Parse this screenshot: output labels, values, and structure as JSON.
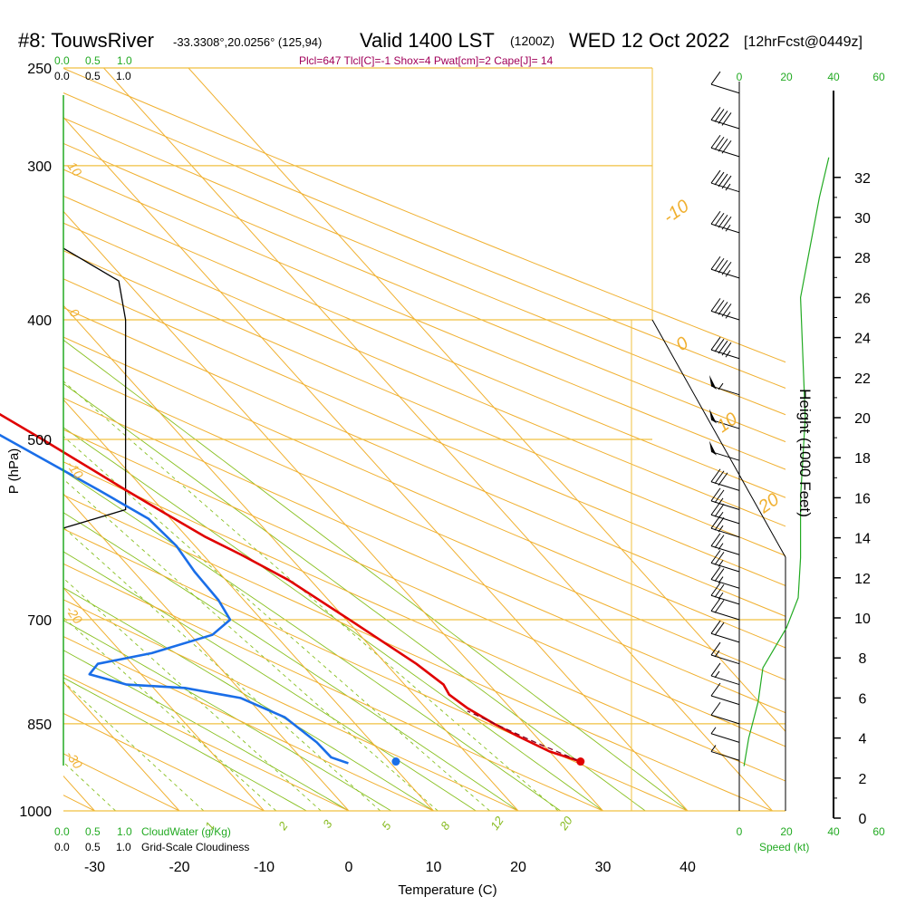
{
  "header": {
    "station": "#8: TouwsRiver",
    "coords": "-33.3308°,20.0256° (125,94)",
    "valid": "Valid 1400 LST",
    "zulu": "(1200Z)",
    "date": "WED 12 Oct 2022",
    "forecast": "[12hrFcst@0449z]"
  },
  "params_line": "Plcl=647 Tlcl[C]=-1 Shox=4 Pwat[cm]=2 Cape[J]= 14",
  "colors": {
    "temperature": "#e00000",
    "dewpoint": "#1a6ee8",
    "isobar": "#f0c040",
    "dry_adiabat": "#f0b030",
    "moist_adiabat": "#88c020",
    "mixing_ratio": "#88c020",
    "cloud_water": "#22aa22",
    "cloudiness": "#000000",
    "wind_speed": "#22aa22"
  },
  "top_scales": {
    "cloud_water_ticks": [
      "0.0",
      "0.5",
      "1.0"
    ],
    "cloudiness_ticks": [
      "0.0",
      "0.5",
      "1.0"
    ],
    "speed_ticks": [
      "0",
      "20",
      "40",
      "60"
    ]
  },
  "bottom_scales": {
    "cloud_water_ticks": [
      "0.0",
      "0.5",
      "1.0"
    ],
    "cloud_water_label": "CloudWater (g/Kg)",
    "cloudiness_ticks": [
      "0.0",
      "0.5",
      "1.0"
    ],
    "cloudiness_label": "Grid-Scale Cloudiness",
    "speed_ticks": [
      "0",
      "20",
      "40",
      "60"
    ],
    "speed_label": "Speed (kt)"
  },
  "axes": {
    "ylabel": "P (hPa)",
    "xlabel": "Temperature (C)",
    "right_label": "Height (1000 Feet)"
  },
  "chart_data": {
    "type": "line",
    "title": "#8: TouwsRiver -33.3308°,20.0256° (125,94) Valid 1400 LST (1200Z) WED 12 Oct 2022 [12hrFcst@0449z]",
    "xlabel": "Temperature (C)",
    "ylabel": "P (hPa)",
    "y_scale": "log (skew-T)",
    "xlim": [
      -34,
      45
    ],
    "ylim": [
      1000,
      250
    ],
    "x_ticks": [
      "-30",
      "-20",
      "-10",
      "0",
      "10",
      "20",
      "30",
      "40"
    ],
    "x_tick_values": [
      -30,
      -20,
      -10,
      0,
      10,
      20,
      30,
      40
    ],
    "p_ticks": [
      "250",
      "300",
      "400",
      "500",
      "700",
      "850",
      "1000"
    ],
    "p_tick_values": [
      250,
      300,
      400,
      500,
      700,
      850,
      1000
    ],
    "height_ticks": [
      "0",
      "2",
      "4",
      "6",
      "8",
      "10",
      "12",
      "14",
      "16",
      "18",
      "20",
      "22",
      "24",
      "26",
      "28",
      "30",
      "32"
    ],
    "height_tick_values": [
      0,
      2,
      4,
      6,
      8,
      10,
      12,
      14,
      16,
      18,
      20,
      22,
      24,
      26,
      28,
      30,
      32
    ],
    "dry_adiabat_labels": [
      "-10",
      "0",
      "10",
      "20",
      "30",
      "10",
      "0",
      "-10",
      "-20",
      "-30"
    ],
    "mixing_ratio_labels": [
      "1",
      "2",
      "3",
      "5",
      "8",
      "12",
      "20"
    ],
    "series": [
      {
        "name": "Temperature",
        "points": [
          {
            "p": 912,
            "t": 32.6
          },
          {
            "p": 895,
            "t": 30.0
          },
          {
            "p": 870,
            "t": 27.9
          },
          {
            "p": 850,
            "t": 26.4
          },
          {
            "p": 825,
            "t": 24.9
          },
          {
            "p": 805,
            "t": 24.2
          },
          {
            "p": 790,
            "t": 24.6
          },
          {
            "p": 760,
            "t": 23.6
          },
          {
            "p": 700,
            "t": 20.4
          },
          {
            "p": 650,
            "t": 17.4
          },
          {
            "p": 620,
            "t": 14.5
          },
          {
            "p": 600,
            "t": 12.2
          },
          {
            "p": 575,
            "t": 10.0
          },
          {
            "p": 550,
            "t": 7.8
          },
          {
            "p": 500,
            "t": 3.3
          },
          {
            "p": 450,
            "t": -2.0
          },
          {
            "p": 400,
            "t": -7.9
          },
          {
            "p": 350,
            "t": -14.6
          },
          {
            "p": 300,
            "t": -22.8
          },
          {
            "p": 265,
            "t": -29.4
          }
        ]
      },
      {
        "name": "Dewpoint",
        "points": [
          {
            "p": 915,
            "t": 5.0
          },
          {
            "p": 905,
            "t": 3.6
          },
          {
            "p": 880,
            "t": 3.5
          },
          {
            "p": 840,
            "t": 2.4
          },
          {
            "p": 810,
            "t": -0.8
          },
          {
            "p": 795,
            "t": -6.3
          },
          {
            "p": 790,
            "t": -12.8
          },
          {
            "p": 775,
            "t": -16.1
          },
          {
            "p": 760,
            "t": -14.0
          },
          {
            "p": 745,
            "t": -6.5
          },
          {
            "p": 720,
            "t": 2.6
          },
          {
            "p": 700,
            "t": 6.3
          },
          {
            "p": 675,
            "t": 7.0
          },
          {
            "p": 640,
            "t": 7.2
          },
          {
            "p": 610,
            "t": 7.8
          },
          {
            "p": 580,
            "t": 7.4
          },
          {
            "p": 550,
            "t": 4.6
          },
          {
            "p": 500,
            "t": -0.8
          },
          {
            "p": 450,
            "t": -6.7
          },
          {
            "p": 400,
            "t": -13.3
          },
          {
            "p": 350,
            "t": -20.6
          },
          {
            "p": 310,
            "t": -28.1
          },
          {
            "p": 290,
            "t": -32.7
          },
          {
            "p": 265,
            "t": -36.6
          }
        ]
      },
      {
        "name": "Parcel",
        "points": [
          {
            "p": 910,
            "t": 32.4
          },
          {
            "p": 880,
            "t": 29.3
          },
          {
            "p": 850,
            "t": 26.5
          },
          {
            "p": 830,
            "t": 24.6
          }
        ]
      }
    ],
    "surface_markers": [
      {
        "name": "Temperature",
        "p": 912,
        "t": 32.6
      },
      {
        "name": "Dewpoint",
        "p": 912,
        "t": 10.8
      }
    ],
    "cloudiness_profile": [
      {
        "p": 350,
        "value": 0.0
      },
      {
        "p": 372,
        "value": 0.65
      },
      {
        "p": 400,
        "value": 0.73
      },
      {
        "p": 450,
        "value": 0.73
      },
      {
        "p": 500,
        "value": 0.73
      },
      {
        "p": 550,
        "value": 0.73
      },
      {
        "p": 570,
        "value": 0.73
      },
      {
        "p": 590,
        "value": 0.0
      }
    ],
    "wind_speed_profile": [
      {
        "height_kft": 2.6,
        "speed_kt": 2
      },
      {
        "height_kft": 4.0,
        "speed_kt": 4
      },
      {
        "height_kft": 5.8,
        "speed_kt": 8
      },
      {
        "height_kft": 7.5,
        "speed_kt": 10
      },
      {
        "height_kft": 9.5,
        "speed_kt": 20
      },
      {
        "height_kft": 11.0,
        "speed_kt": 25
      },
      {
        "height_kft": 13.0,
        "speed_kt": 26
      },
      {
        "height_kft": 16.0,
        "speed_kt": 26
      },
      {
        "height_kft": 20.0,
        "speed_kt": 28
      },
      {
        "height_kft": 23.0,
        "speed_kt": 27
      },
      {
        "height_kft": 26.0,
        "speed_kt": 26
      },
      {
        "height_kft": 28.5,
        "speed_kt": 30
      },
      {
        "height_kft": 31.0,
        "speed_kt": 34
      },
      {
        "height_kft": 33.0,
        "speed_kt": 38
      }
    ],
    "wind_barbs": [
      {
        "p": 910,
        "speed_kt": 5
      },
      {
        "p": 880,
        "speed_kt": 5
      },
      {
        "p": 850,
        "speed_kt": 10
      },
      {
        "p": 820,
        "speed_kt": 10
      },
      {
        "p": 790,
        "speed_kt": 15
      },
      {
        "p": 760,
        "speed_kt": 15
      },
      {
        "p": 730,
        "speed_kt": 20
      },
      {
        "p": 700,
        "speed_kt": 20
      },
      {
        "p": 680,
        "speed_kt": 25
      },
      {
        "p": 660,
        "speed_kt": 25
      },
      {
        "p": 640,
        "speed_kt": 25
      },
      {
        "p": 620,
        "speed_kt": 25
      },
      {
        "p": 600,
        "speed_kt": 25
      },
      {
        "p": 585,
        "speed_kt": 25
      },
      {
        "p": 570,
        "speed_kt": 25
      },
      {
        "p": 550,
        "speed_kt": 30
      },
      {
        "p": 520,
        "speed_kt": 50
      },
      {
        "p": 490,
        "speed_kt": 50
      },
      {
        "p": 460,
        "speed_kt": 55
      },
      {
        "p": 430,
        "speed_kt": 45
      },
      {
        "p": 400,
        "speed_kt": 45
      },
      {
        "p": 370,
        "speed_kt": 45
      },
      {
        "p": 340,
        "speed_kt": 45
      },
      {
        "p": 315,
        "speed_kt": 45
      },
      {
        "p": 295,
        "speed_kt": 40
      },
      {
        "p": 280,
        "speed_kt": 40
      },
      {
        "p": 262,
        "speed_kt": 10
      }
    ]
  }
}
